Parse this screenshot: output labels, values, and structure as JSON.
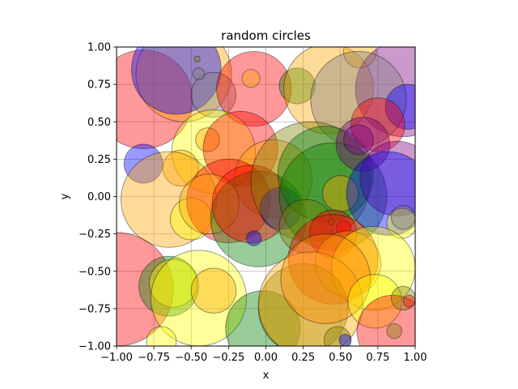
{
  "chart_data": {
    "type": "scatter",
    "title": "random circles",
    "xlabel": "x",
    "ylabel": "y",
    "xlim": [
      -1.0,
      1.0
    ],
    "ylim": [
      -1.0,
      1.0
    ],
    "xticks": [
      "−1.00",
      "−0.75",
      "−0.50",
      "−0.25",
      "0.00",
      "0.25",
      "0.50",
      "0.75",
      "1.00"
    ],
    "yticks": [
      "−1.00",
      "−0.75",
      "−0.50",
      "−0.25",
      "0.00",
      "0.25",
      "0.50",
      "0.75",
      "1.00"
    ],
    "xtick_values": [
      -1.0,
      -0.75,
      -0.5,
      -0.25,
      0.0,
      0.25,
      0.5,
      0.75,
      1.0
    ],
    "ytick_values": [
      -1.0,
      -0.75,
      -0.5,
      -0.25,
      0.0,
      0.25,
      0.5,
      0.75,
      1.0
    ],
    "grid": true,
    "alpha": 0.4,
    "circles": [
      {
        "x": -0.82,
        "y": 0.65,
        "r": 0.33,
        "color": "#ff0000"
      },
      {
        "x": -0.55,
        "y": 0.82,
        "r": 0.32,
        "color": "#ffa500"
      },
      {
        "x": -0.6,
        "y": 0.85,
        "r": 0.3,
        "color": "#0000ff"
      },
      {
        "x": -0.35,
        "y": 0.68,
        "r": 0.15,
        "color": "#808080"
      },
      {
        "x": -0.45,
        "y": 0.82,
        "r": 0.04,
        "color": "#808080"
      },
      {
        "x": -0.46,
        "y": 0.92,
        "r": 0.02,
        "color": "#808000"
      },
      {
        "x": -0.08,
        "y": 0.72,
        "r": 0.25,
        "color": "#ff0000"
      },
      {
        "x": -0.1,
        "y": 0.79,
        "r": 0.06,
        "color": "#ffa500"
      },
      {
        "x": 0.21,
        "y": 0.74,
        "r": 0.12,
        "color": "#008000"
      },
      {
        "x": 0.42,
        "y": 0.72,
        "r": 0.3,
        "color": "#ffa500"
      },
      {
        "x": 0.63,
        "y": 0.97,
        "r": 0.11,
        "color": "#ffa500"
      },
      {
        "x": 0.92,
        "y": 0.72,
        "r": 0.32,
        "color": "#800080"
      },
      {
        "x": 0.62,
        "y": 0.65,
        "r": 0.32,
        "color": "#808080"
      },
      {
        "x": 0.95,
        "y": 0.6,
        "r": 0.15,
        "color": "#0000ff"
      },
      {
        "x": -0.82,
        "y": 0.22,
        "r": 0.13,
        "color": "#0000ff"
      },
      {
        "x": -0.35,
        "y": 0.3,
        "r": 0.28,
        "color": "#ffff00"
      },
      {
        "x": -0.39,
        "y": 0.38,
        "r": 0.08,
        "color": "#ffa500"
      },
      {
        "x": -0.57,
        "y": 0.19,
        "r": 0.12,
        "color": "#ffa500"
      },
      {
        "x": -0.17,
        "y": 0.32,
        "r": 0.25,
        "color": "#ff0000"
      },
      {
        "x": 0.05,
        "y": 0.12,
        "r": 0.26,
        "color": "#ffa500"
      },
      {
        "x": -0.65,
        "y": -0.02,
        "r": 0.32,
        "color": "#ffa500"
      },
      {
        "x": -0.5,
        "y": -0.15,
        "r": 0.14,
        "color": "#ffff00"
      },
      {
        "x": -0.25,
        "y": -0.03,
        "r": 0.28,
        "color": "#ff0000"
      },
      {
        "x": -0.38,
        "y": -0.05,
        "r": 0.2,
        "color": "#ffa500"
      },
      {
        "x": -0.05,
        "y": -0.15,
        "r": 0.32,
        "color": "#008000"
      },
      {
        "x": -0.1,
        "y": -0.05,
        "r": 0.26,
        "color": "#ff0000"
      },
      {
        "x": 0.1,
        "y": -0.08,
        "r": 0.14,
        "color": "#0000ff"
      },
      {
        "x": 0.3,
        "y": 0.1,
        "r": 0.4,
        "color": "#808000"
      },
      {
        "x": 0.4,
        "y": 0.15,
        "r": 0.32,
        "color": "#008000"
      },
      {
        "x": 0.45,
        "y": 0.0,
        "r": 0.36,
        "color": "#008000"
      },
      {
        "x": 0.5,
        "y": 0.02,
        "r": 0.12,
        "color": "#ffa500"
      },
      {
        "x": 0.75,
        "y": 0.48,
        "r": 0.18,
        "color": "#ff0000"
      },
      {
        "x": 0.65,
        "y": 0.35,
        "r": 0.18,
        "color": "#800080"
      },
      {
        "x": 0.62,
        "y": 0.38,
        "r": 0.1,
        "color": "#800080"
      },
      {
        "x": 0.88,
        "y": 0.12,
        "r": 0.25,
        "color": "#800080"
      },
      {
        "x": 0.82,
        "y": 0.02,
        "r": 0.28,
        "color": "#0000ff"
      },
      {
        "x": 0.91,
        "y": -0.18,
        "r": 0.1,
        "color": "#ffff00"
      },
      {
        "x": 0.92,
        "y": -0.14,
        "r": 0.08,
        "color": "#808080"
      },
      {
        "x": 0.27,
        "y": -0.2,
        "r": 0.18,
        "color": "#808000"
      },
      {
        "x": 0.45,
        "y": -0.25,
        "r": 0.16,
        "color": "#ff0000"
      },
      {
        "x": 0.52,
        "y": -0.21,
        "r": 0.05,
        "color": "#ff0000"
      },
      {
        "x": 0.44,
        "y": -0.17,
        "r": 0.02,
        "color": "#808000"
      },
      {
        "x": -0.08,
        "y": -0.28,
        "r": 0.05,
        "color": "#0000ff"
      },
      {
        "x": 0.45,
        "y": -0.42,
        "r": 0.3,
        "color": "#ff0000"
      },
      {
        "x": 0.55,
        "y": -0.45,
        "r": 0.22,
        "color": "#ffa500"
      },
      {
        "x": 0.72,
        "y": -0.48,
        "r": 0.28,
        "color": "#ffff00"
      },
      {
        "x": -1.0,
        "y": -0.62,
        "r": 0.38,
        "color": "#ff0000"
      },
      {
        "x": -0.65,
        "y": -0.6,
        "r": 0.2,
        "color": "#008000"
      },
      {
        "x": -0.62,
        "y": -0.58,
        "r": 0.16,
        "color": "#ffff00"
      },
      {
        "x": -0.45,
        "y": -0.68,
        "r": 0.32,
        "color": "#ffff00"
      },
      {
        "x": -0.35,
        "y": -0.63,
        "r": 0.15,
        "color": "#ffa500"
      },
      {
        "x": -0.7,
        "y": -0.97,
        "r": 0.1,
        "color": "#ffff00"
      },
      {
        "x": -0.02,
        "y": -0.88,
        "r": 0.25,
        "color": "#008000"
      },
      {
        "x": 0.25,
        "y": -0.75,
        "r": 0.3,
        "color": "#808000"
      },
      {
        "x": 0.3,
        "y": -0.72,
        "r": 0.35,
        "color": "#ffa500"
      },
      {
        "x": 0.4,
        "y": -0.55,
        "r": 0.3,
        "color": "#ff8c00"
      },
      {
        "x": 0.73,
        "y": -0.7,
        "r": 0.18,
        "color": "#ffff00"
      },
      {
        "x": 0.85,
        "y": -0.9,
        "r": 0.24,
        "color": "#ff0000"
      },
      {
        "x": 0.92,
        "y": -0.68,
        "r": 0.08,
        "color": "#808000"
      },
      {
        "x": 0.96,
        "y": -0.7,
        "r": 0.04,
        "color": "#ff0000"
      },
      {
        "x": 0.86,
        "y": -0.9,
        "r": 0.05,
        "color": "#808000"
      },
      {
        "x": 0.48,
        "y": -0.96,
        "r": 0.09,
        "color": "#808000"
      },
      {
        "x": 0.53,
        "y": -0.96,
        "r": 0.04,
        "color": "#0000ff"
      }
    ]
  }
}
